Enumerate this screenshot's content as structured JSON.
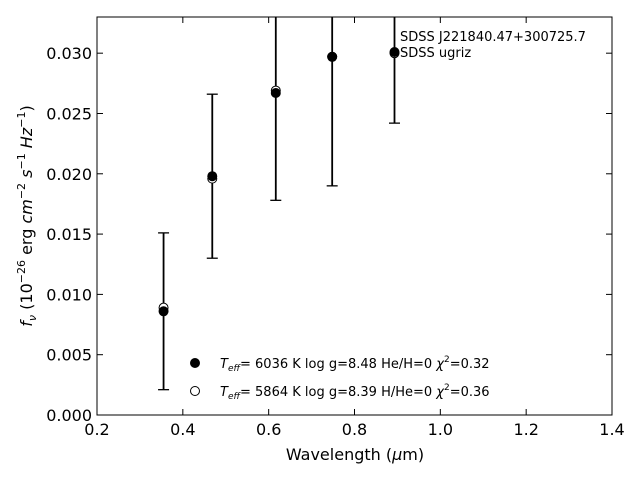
{
  "chart_data": {
    "type": "scatter",
    "xlabel": "Wavelength (μm)",
    "ylabel": "f_ν (10^−26 erg cm^−2 s^−1 Hz^−1)",
    "xlim": [
      0.2,
      1.4
    ],
    "ylim": [
      0.0,
      0.033
    ],
    "xticks": [
      "0.2",
      "0.4",
      "0.6",
      "0.8",
      "1.0",
      "1.2",
      "1.4"
    ],
    "yticks": [
      "0.000",
      "0.005",
      "0.010",
      "0.015",
      "0.020",
      "0.025",
      "0.030"
    ],
    "annotations": [
      "SDSS J221840.47+300725.7",
      "SDSS ugriz"
    ],
    "observed": {
      "x": [
        0.3551,
        0.4686,
        0.6166,
        0.748,
        0.8932
      ],
      "y": [
        0.0086,
        0.0198,
        0.0267,
        0.0297,
        0.0301
      ],
      "yerr": [
        0.0065,
        0.0068,
        0.0089,
        0.0107,
        0.0059
      ]
    },
    "series": [
      {
        "legend": "T_eff=  6036 K  log g=8.48  He/H=0  χ²=0.32",
        "marker": "filled",
        "x": [
          0.3551,
          0.4686,
          0.6166,
          0.748,
          0.8932
        ],
        "y": [
          0.0086,
          0.0198,
          0.0267,
          0.0297,
          0.0301
        ]
      },
      {
        "legend": "T_eff=  5864 K  log g=8.39  H/He=0  χ²=0.36",
        "marker": "open",
        "x": [
          0.3551,
          0.4686,
          0.6166,
          0.748,
          0.8932
        ],
        "y": [
          0.0089,
          0.0196,
          0.0269,
          0.0297,
          0.03
        ]
      }
    ]
  }
}
